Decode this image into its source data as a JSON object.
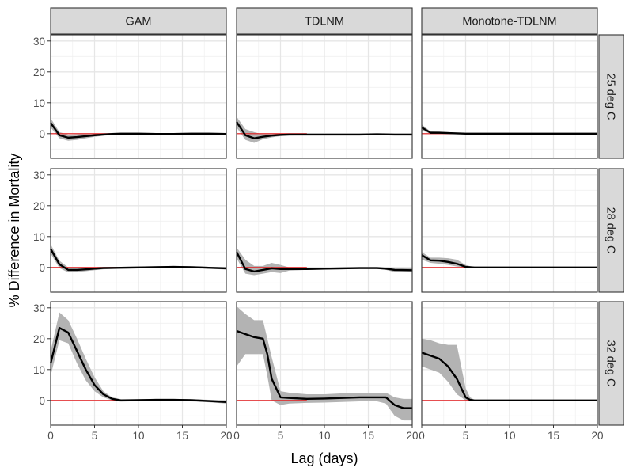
{
  "chart_data": {
    "type": "line",
    "layout": "facet-grid",
    "xlabel": "Lag (days)",
    "ylabel": "% Difference in Mortality",
    "xlim": [
      0,
      20
    ],
    "ylim": [
      -8,
      32
    ],
    "xticks": [
      "0",
      "5",
      "10",
      "15",
      "20"
    ],
    "yticks": [
      "0",
      "10",
      "20",
      "30"
    ],
    "grid": true,
    "reference_line": {
      "y": 0,
      "color": "#e41a1c"
    },
    "band_color": "#b3b3b3",
    "line_color": "#000000",
    "columns": [
      "GAM",
      "TDLNM",
      "Monotone-TDLNM"
    ],
    "rows": [
      "25 deg C",
      "28 deg C",
      "32 deg C"
    ],
    "panels": [
      {
        "column": "GAM",
        "row": "25 deg C",
        "x": [
          0,
          1,
          2,
          3,
          4,
          5,
          6,
          7,
          8,
          10,
          12,
          14,
          16,
          18,
          20
        ],
        "estimate": [
          3.5,
          -0.5,
          -1.3,
          -1.1,
          -0.8,
          -0.5,
          -0.3,
          -0.1,
          0,
          0,
          -0.1,
          -0.1,
          0,
          0,
          -0.1
        ],
        "lower": [
          2.0,
          -1.5,
          -2.3,
          -2.0,
          -1.5,
          -1.0,
          -0.7,
          -0.4,
          -0.3,
          -0.3,
          -0.4,
          -0.4,
          -0.3,
          -0.3,
          -0.4
        ],
        "upper": [
          5.0,
          0.5,
          -0.3,
          -0.2,
          -0.1,
          0,
          0.1,
          0.2,
          0.3,
          0.3,
          0.2,
          0.2,
          0.3,
          0.3,
          0.2
        ]
      },
      {
        "column": "TDLNM",
        "row": "25 deg C",
        "x": [
          0,
          1,
          2,
          3,
          4,
          5,
          6,
          8,
          10,
          12,
          14,
          16,
          18,
          20
        ],
        "estimate": [
          3.8,
          -0.5,
          -1.5,
          -1.0,
          -0.6,
          -0.4,
          -0.3,
          -0.3,
          -0.3,
          -0.3,
          -0.3,
          -0.2,
          -0.3,
          -0.3
        ],
        "lower": [
          2.0,
          -2.0,
          -3.0,
          -1.8,
          -1.2,
          -0.8,
          -0.6,
          -0.5,
          -0.5,
          -0.5,
          -0.5,
          -0.4,
          -0.5,
          -0.6
        ],
        "upper": [
          5.5,
          1.5,
          0.5,
          -0.2,
          -0.1,
          0,
          0,
          -0.1,
          -0.1,
          -0.1,
          -0.1,
          0,
          -0.1,
          -0.1
        ]
      },
      {
        "column": "Monotone-TDLNM",
        "row": "25 deg C",
        "x": [
          0,
          1,
          2,
          3,
          4,
          5,
          6,
          8,
          10,
          12,
          14,
          16,
          18,
          20
        ],
        "estimate": [
          2.0,
          0.3,
          0.3,
          0.2,
          0.1,
          0,
          0,
          0,
          0,
          0,
          0,
          0,
          0,
          0
        ],
        "lower": [
          1.0,
          0,
          0,
          0,
          0,
          0,
          0,
          0,
          0,
          0,
          0,
          0,
          0,
          0
        ],
        "upper": [
          3.0,
          0.7,
          0.6,
          0.5,
          0.3,
          0.1,
          0,
          0,
          0,
          0,
          0,
          0,
          0,
          0
        ]
      },
      {
        "column": "GAM",
        "row": "28 deg C",
        "x": [
          0,
          1,
          2,
          3,
          4,
          5,
          6,
          8,
          10,
          12,
          14,
          16,
          18,
          20
        ],
        "estimate": [
          6.0,
          1.0,
          -0.8,
          -0.8,
          -0.6,
          -0.4,
          -0.2,
          -0.1,
          0,
          0.1,
          0.2,
          0.1,
          -0.1,
          -0.3
        ],
        "lower": [
          4.5,
          -0.2,
          -1.6,
          -1.5,
          -1.2,
          -0.9,
          -0.6,
          -0.4,
          -0.3,
          -0.2,
          -0.1,
          -0.2,
          -0.4,
          -0.7
        ],
        "upper": [
          7.5,
          2.2,
          0,
          -0.1,
          0,
          0.1,
          0.2,
          0.2,
          0.3,
          0.4,
          0.5,
          0.4,
          0.2,
          0.1
        ]
      },
      {
        "column": "TDLNM",
        "row": "28 deg C",
        "x": [
          0,
          1,
          2,
          3,
          4,
          5,
          6,
          8,
          10,
          12,
          14,
          16,
          17,
          18,
          20
        ],
        "estimate": [
          5.0,
          -0.5,
          -1.3,
          -0.8,
          -0.3,
          -0.5,
          -0.5,
          -0.5,
          -0.4,
          -0.3,
          -0.2,
          -0.2,
          -0.4,
          -0.8,
          -0.9
        ],
        "lower": [
          3.0,
          -2.0,
          -2.5,
          -2.0,
          -1.5,
          -1.8,
          -1.0,
          -0.8,
          -0.7,
          -0.6,
          -0.5,
          -0.5,
          -0.8,
          -1.5,
          -1.6
        ],
        "upper": [
          6.5,
          2.5,
          0.5,
          0.5,
          1.5,
          0.8,
          0,
          -0.2,
          -0.1,
          0,
          0.1,
          0.1,
          0,
          -0.1,
          -0.2
        ]
      },
      {
        "column": "Monotone-TDLNM",
        "row": "28 deg C",
        "x": [
          0,
          1,
          2,
          3,
          4,
          5,
          6,
          8,
          10,
          12,
          14,
          16,
          18,
          20
        ],
        "estimate": [
          4.0,
          2.3,
          2.2,
          1.8,
          1.2,
          0.2,
          0,
          0,
          0,
          0,
          0,
          0,
          0,
          0
        ],
        "lower": [
          2.5,
          1.5,
          1.2,
          0.8,
          0.3,
          0,
          0,
          0,
          0,
          0,
          0,
          0,
          0,
          0
        ],
        "upper": [
          5.0,
          3.2,
          3.2,
          3.0,
          2.5,
          0.8,
          0,
          0,
          0,
          0,
          0,
          0,
          0,
          0
        ]
      },
      {
        "column": "GAM",
        "row": "32 deg C",
        "x": [
          0,
          1,
          2,
          3,
          4,
          5,
          6,
          7,
          8,
          10,
          12,
          14,
          16,
          18,
          20
        ],
        "estimate": [
          12.0,
          23.5,
          22.0,
          16.0,
          10.0,
          5.0,
          2.0,
          0.5,
          0,
          0.1,
          0.2,
          0.2,
          0.1,
          -0.2,
          -0.5
        ],
        "lower": [
          8.0,
          19.5,
          18.5,
          12.0,
          6.5,
          3.0,
          1.0,
          0,
          -0.4,
          -0.2,
          -0.1,
          -0.1,
          -0.3,
          -0.6,
          -1.0
        ],
        "upper": [
          16.0,
          28.5,
          26.0,
          20.0,
          13.5,
          7.5,
          3.0,
          1.0,
          0.4,
          0.4,
          0.5,
          0.5,
          0.4,
          0.2,
          0
        ]
      },
      {
        "column": "TDLNM",
        "row": "32 deg C",
        "x": [
          0,
          1,
          2,
          3,
          3.5,
          4,
          5,
          6,
          8,
          10,
          12,
          14,
          16,
          17,
          18,
          19,
          20
        ],
        "estimate": [
          22.5,
          21.5,
          20.5,
          20.0,
          15.0,
          7.0,
          1.0,
          0.8,
          0.5,
          0.6,
          0.8,
          1.0,
          1.0,
          1.0,
          -1.5,
          -2.5,
          -2.5
        ],
        "lower": [
          11.0,
          15.0,
          15.0,
          15.0,
          8.0,
          0.0,
          -1.5,
          -1.0,
          -0.8,
          -0.7,
          -0.5,
          -0.3,
          -0.3,
          -1.0,
          -5.0,
          -6.5,
          -6.5
        ],
        "upper": [
          30.5,
          28.0,
          26.0,
          26.0,
          20.0,
          14.0,
          3.0,
          2.5,
          2.0,
          2.0,
          2.3,
          2.5,
          2.5,
          2.5,
          1.0,
          0.5,
          0.5
        ]
      },
      {
        "column": "Monotone-TDLNM",
        "row": "32 deg C",
        "x": [
          0,
          1,
          2,
          3,
          4,
          5,
          5.5,
          6,
          8,
          10,
          12,
          14,
          16,
          18,
          20
        ],
        "estimate": [
          15.5,
          14.5,
          13.5,
          11.0,
          7.0,
          1.0,
          0.2,
          0,
          0,
          0,
          0,
          0,
          0,
          0,
          0
        ],
        "lower": [
          11.0,
          10.0,
          9.0,
          6.0,
          2.0,
          0,
          0,
          0,
          0,
          0,
          0,
          0,
          0,
          0,
          0
        ],
        "upper": [
          20.0,
          19.5,
          18.5,
          18.0,
          18.0,
          4.0,
          1.0,
          0.2,
          0,
          0,
          0,
          0,
          0,
          0,
          0
        ]
      }
    ]
  }
}
